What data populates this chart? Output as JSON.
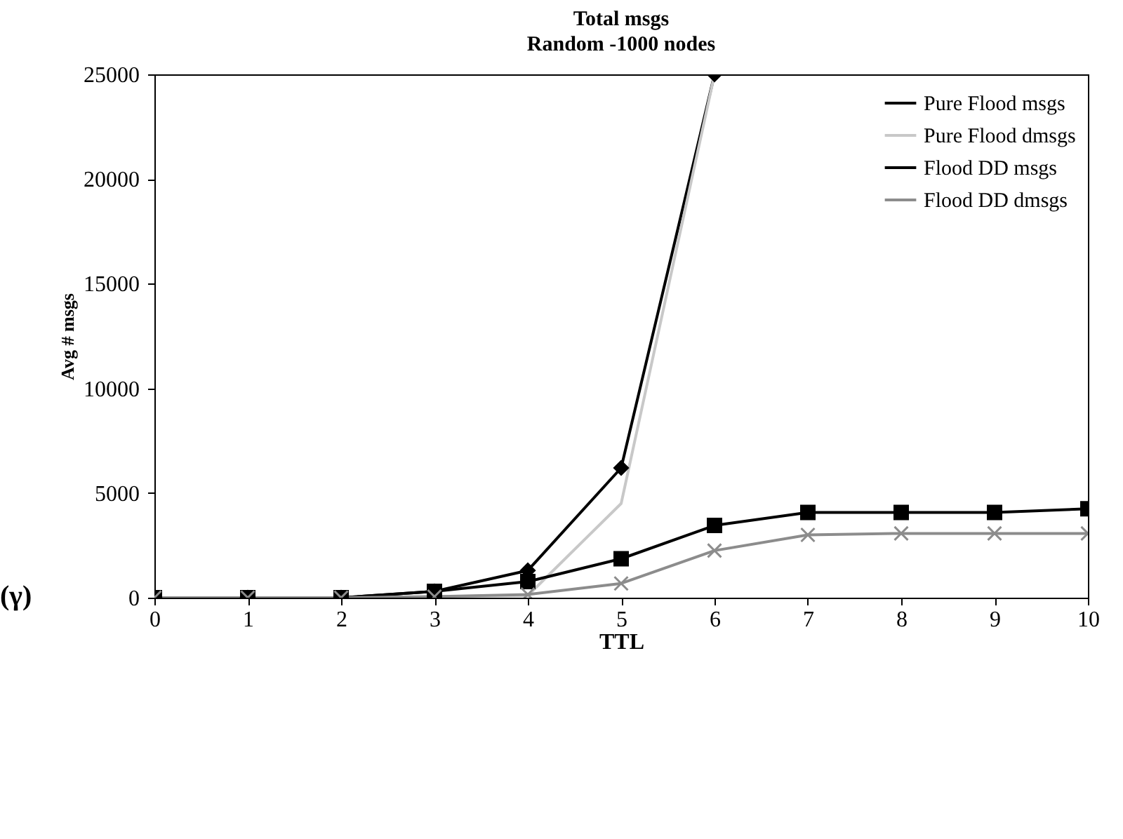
{
  "chart_data": {
    "type": "line",
    "title": "Total msgs",
    "subtitle": "Random -1000 nodes",
    "xlabel": "TTL",
    "ylabel": "Avg # msgs",
    "x": [
      0,
      1,
      2,
      3,
      4,
      5,
      6,
      7,
      8,
      9,
      10
    ],
    "series": [
      {
        "name": "Pure Flood msgs",
        "color": "#000000",
        "marker": "diamond",
        "values": [
          0,
          0,
          0,
          300,
          1300,
          6200,
          25000,
          null,
          null,
          null,
          null
        ]
      },
      {
        "name": "Pure Flood dmsgs",
        "color": "#c8c8c8",
        "marker": "none",
        "values": [
          0,
          0,
          0,
          50,
          100,
          4500,
          25000,
          null,
          null,
          null,
          null
        ]
      },
      {
        "name": "Flood DD msgs",
        "color": "#000000",
        "marker": "square",
        "values": [
          0,
          0,
          0,
          300,
          770,
          1860,
          3450,
          4070,
          4070,
          4070,
          4250
        ]
      },
      {
        "name": "Flood DD dmsgs",
        "color": "#8c8c8c",
        "marker": "cross",
        "values": [
          0,
          0,
          0,
          50,
          150,
          680,
          2250,
          3000,
          3070,
          3070,
          3070
        ]
      }
    ],
    "xlim": [
      0,
      10
    ],
    "xticks": [
      0,
      1,
      2,
      3,
      4,
      5,
      6,
      7,
      8,
      9,
      10
    ],
    "ylim": [
      0,
      25000
    ],
    "yticks": [
      0,
      5000,
      10000,
      15000,
      20000,
      25000
    ],
    "grid": false,
    "legend": "top right",
    "annotations": [
      "(γ)"
    ]
  }
}
